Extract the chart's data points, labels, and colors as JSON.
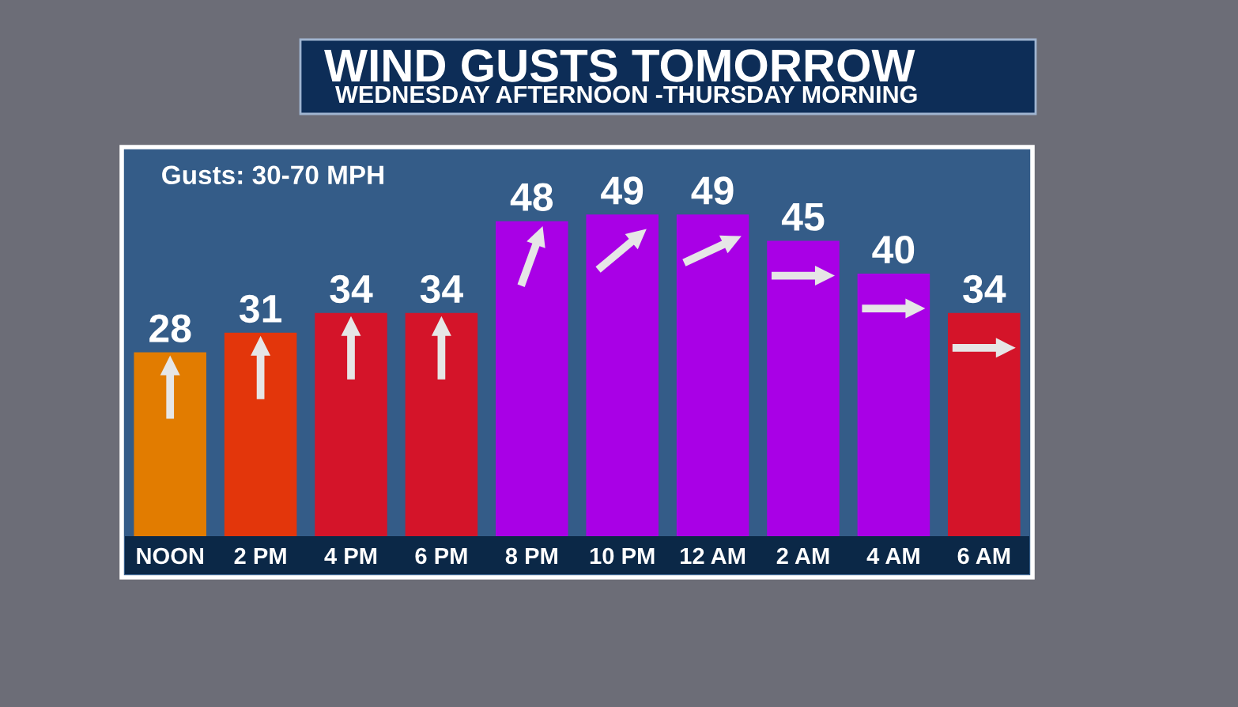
{
  "chart_data": {
    "type": "bar",
    "title": "WIND GUSTS TOMORROW",
    "subtitle": "WEDNESDAY AFTERNOON -THURSDAY MORNING",
    "categories": [
      "NOON",
      "2 PM",
      "4 PM",
      "6 PM",
      "8 PM",
      "10 PM",
      "12 AM",
      "2 AM",
      "4 AM",
      "6 AM"
    ],
    "values": [
      28,
      31,
      34,
      34,
      48,
      49,
      49,
      45,
      40,
      34
    ],
    "colors": [
      "#e27c00",
      "#e3360b",
      "#d41429",
      "#d41429",
      "#a900e6",
      "#a900e6",
      "#a900e6",
      "#a900e6",
      "#a900e6",
      "#d41429"
    ],
    "data_labels": true,
    "annotations": [
      "Gusts: 30-70 MPH"
    ]
  }
}
